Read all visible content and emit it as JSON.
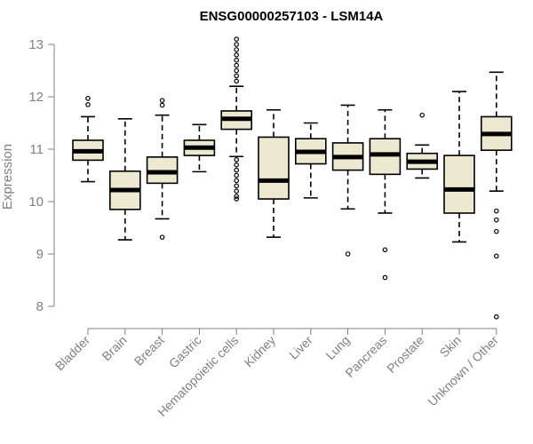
{
  "chart_data": {
    "type": "boxplot",
    "title": "ENSG00000257103 - LSM14A",
    "xlabel": "",
    "ylabel": "Expression",
    "ylim": [
      7.6,
      13.2
    ],
    "yticks": [
      8,
      9,
      10,
      11,
      12,
      13
    ],
    "box_fill": "#ede8d0",
    "categories": [
      "Bladder",
      "Brain",
      "Breast",
      "Gastric",
      "Hematopoietic cells",
      "Kidney",
      "Liver",
      "Lung",
      "Pancreas",
      "Prostate",
      "Skin",
      "Unknown / Other"
    ],
    "boxes": [
      {
        "name": "Bladder",
        "whisker_low": 10.38,
        "q1": 10.79,
        "median": 10.96,
        "q3": 11.17,
        "whisker_high": 11.62,
        "outliers": [
          11.85,
          11.97
        ]
      },
      {
        "name": "Brain",
        "whisker_low": 9.27,
        "q1": 9.85,
        "median": 10.22,
        "q3": 10.58,
        "whisker_high": 11.58,
        "outliers": []
      },
      {
        "name": "Breast",
        "whisker_low": 9.67,
        "q1": 10.35,
        "median": 10.56,
        "q3": 10.85,
        "whisker_high": 11.65,
        "outliers": [
          11.84,
          11.93,
          9.32
        ]
      },
      {
        "name": "Gastric",
        "whisker_low": 10.57,
        "q1": 10.88,
        "median": 11.03,
        "q3": 11.17,
        "whisker_high": 11.47,
        "outliers": []
      },
      {
        "name": "Hematopoietic cells",
        "whisker_low": 10.86,
        "q1": 11.38,
        "median": 11.58,
        "q3": 11.73,
        "whisker_high": 12.2,
        "outliers": [
          12.3,
          12.4,
          12.5,
          12.6,
          12.7,
          12.8,
          12.9,
          13.0,
          13.1,
          10.8,
          10.7,
          10.6,
          10.5,
          10.4,
          10.3,
          10.2,
          10.1,
          10.05
        ]
      },
      {
        "name": "Kidney",
        "whisker_low": 9.32,
        "q1": 10.05,
        "median": 10.4,
        "q3": 11.23,
        "whisker_high": 11.75,
        "outliers": []
      },
      {
        "name": "Liver",
        "whisker_low": 10.07,
        "q1": 10.72,
        "median": 10.95,
        "q3": 11.2,
        "whisker_high": 11.5,
        "outliers": []
      },
      {
        "name": "Lung",
        "whisker_low": 9.86,
        "q1": 10.6,
        "median": 10.85,
        "q3": 11.12,
        "whisker_high": 11.84,
        "outliers": [
          9.0
        ]
      },
      {
        "name": "Pancreas",
        "whisker_low": 9.78,
        "q1": 10.52,
        "median": 10.9,
        "q3": 11.2,
        "whisker_high": 11.75,
        "outliers": [
          9.08,
          8.55
        ]
      },
      {
        "name": "Prostate",
        "whisker_low": 10.45,
        "q1": 10.62,
        "median": 10.76,
        "q3": 10.92,
        "whisker_high": 11.08,
        "outliers": [
          11.65
        ]
      },
      {
        "name": "Skin",
        "whisker_low": 9.23,
        "q1": 9.78,
        "median": 10.23,
        "q3": 10.88,
        "whisker_high": 12.1,
        "outliers": []
      },
      {
        "name": "Unknown / Other",
        "whisker_low": 10.2,
        "q1": 10.98,
        "median": 11.29,
        "q3": 11.62,
        "whisker_high": 12.47,
        "outliers": [
          9.82,
          9.65,
          9.43,
          8.96,
          7.8
        ]
      }
    ]
  }
}
